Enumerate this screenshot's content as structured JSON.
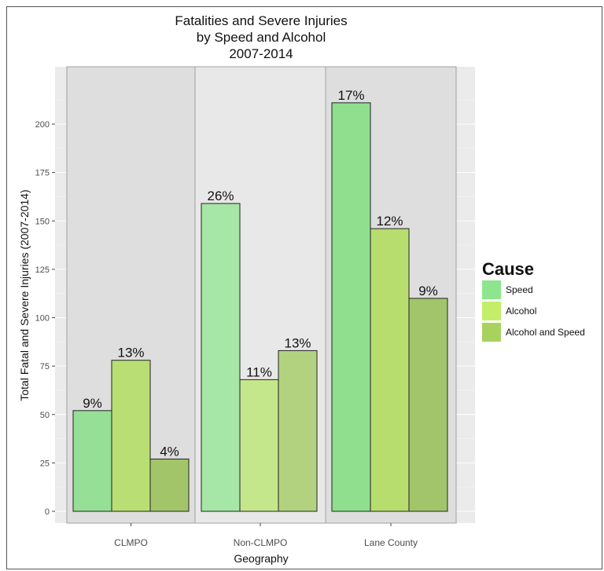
{
  "chart_data": {
    "type": "bar",
    "title": [
      "Fatalities and Severe Injuries",
      "by Speed and Alcohol",
      "2007-2014"
    ],
    "xlabel": "Geography",
    "ylabel": "Total Fatal and Severe Injuries (2007-2014)",
    "ylim": [
      0,
      220
    ],
    "yticks": [
      0,
      25,
      50,
      75,
      100,
      125,
      150,
      175,
      200
    ],
    "categories": [
      "CLMPO",
      "Non-CLMPO",
      "Lane County"
    ],
    "series": [
      {
        "name": "Speed",
        "values": [
          52,
          159,
          211
        ],
        "labels": [
          "9%",
          "26%",
          "17%"
        ]
      },
      {
        "name": "Alcohol",
        "values": [
          78,
          68,
          146
        ],
        "labels": [
          "13%",
          "11%",
          "12%"
        ]
      },
      {
        "name": "Alcohol and Speed",
        "values": [
          27,
          83,
          110
        ],
        "labels": [
          "4%",
          "13%",
          "9%"
        ]
      }
    ],
    "legend": {
      "title": "Cause",
      "position": "right"
    },
    "colors": {
      "Speed": [
        "#96df96",
        "#a6e6a6",
        "#8fdf8f"
      ],
      "Alcohol": [
        "#b9df74",
        "#c5e78c",
        "#b7dd6f"
      ],
      "Alcohol and Speed": [
        "#a3c56a",
        "#b2d280",
        "#a2c46a"
      ]
    },
    "legend_colors": [
      "#8de68d",
      "#c4ee6a",
      "#a8d25e"
    ],
    "panel_bg": "#ebebeb",
    "facet_bg": [
      "#dedede",
      "#e8e8e8",
      "#dedede"
    ],
    "grid": true
  }
}
